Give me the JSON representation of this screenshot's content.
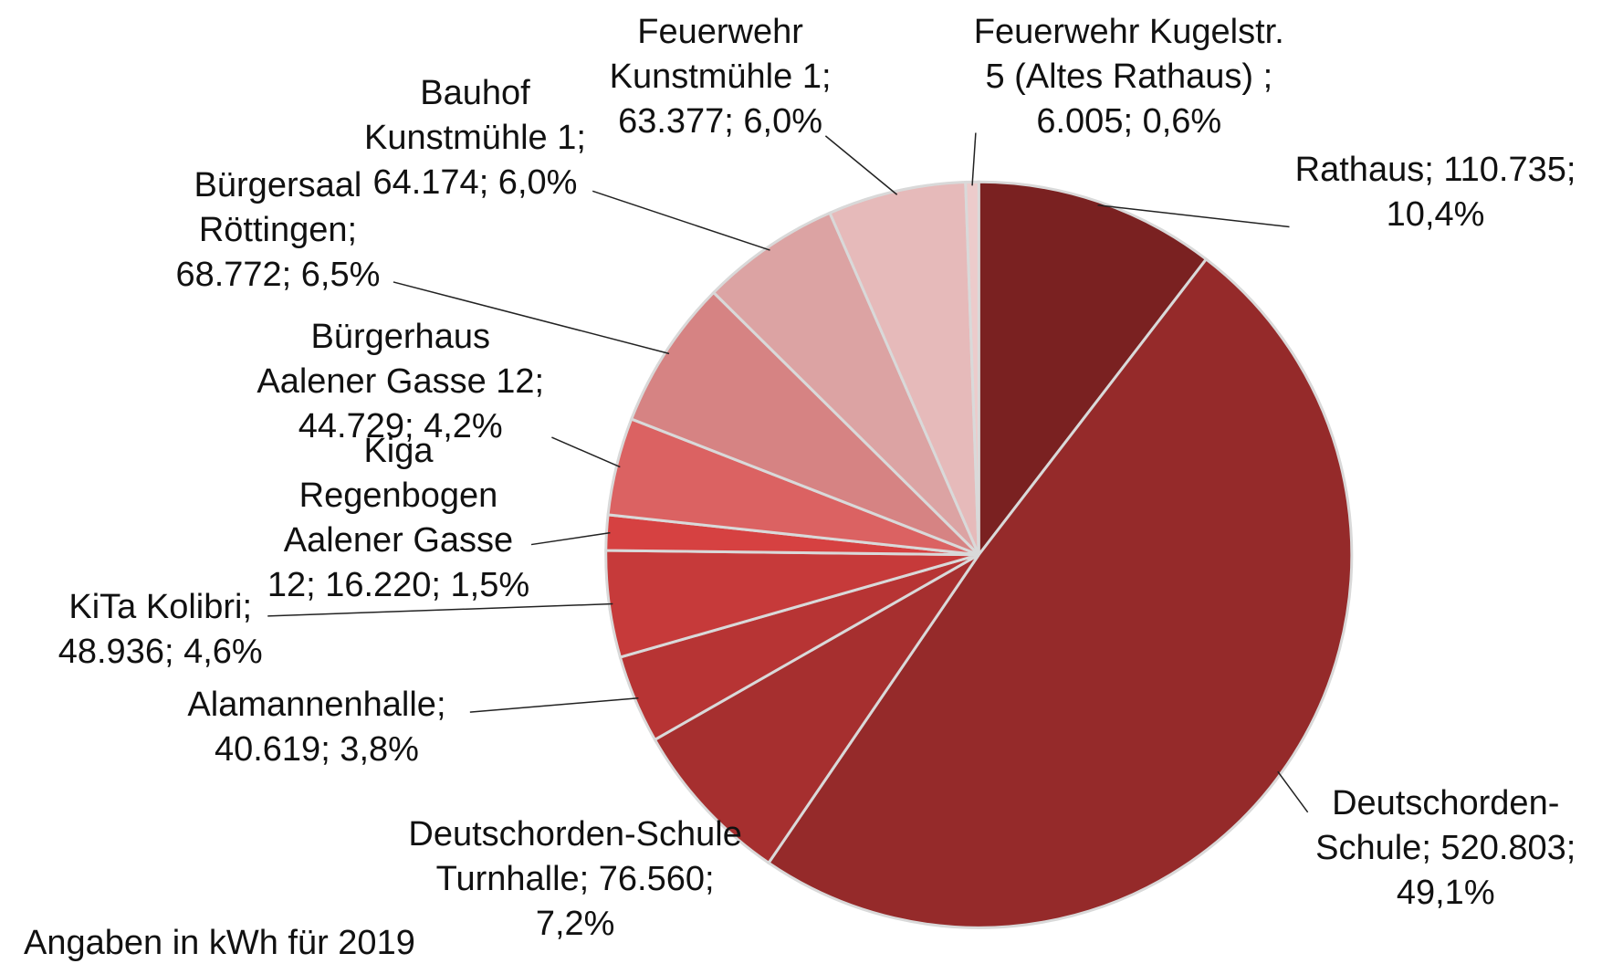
{
  "chart_data": {
    "type": "pie",
    "categories": [
      "Rathaus",
      "Deutschorden-Schule",
      "Deutschorden-Schule Turnhalle",
      "Alamannenhalle",
      "KiTa Kolibri",
      "Kiga Regenbogen Aalener Gasse 12",
      "Bürgerhaus Aalener Gasse 12",
      "Bürgersaal Röttingen",
      "Bauhof Kunstmühle 1",
      "Feuerwehr Kunstmühle 1",
      "Feuerwehr Kugelstr. 5 (Altes Rathaus)"
    ],
    "values": [
      110735,
      520803,
      76560,
      40619,
      48936,
      16220,
      44729,
      68772,
      64174,
      63377,
      6005
    ],
    "value_labels": [
      "Rathaus; 110.735; 10,4%",
      "Deutschorden-Schule; 520.803; 49,1%",
      "Deutschorden-Schule Turnhalle; 76.560; 7,2%",
      "Alamannenhalle; 40.619; 3,8%",
      "KiTa Kolibri; 48.936; 4,6%",
      "Kiga Regenbogen Aalener Gasse 12; 16.220; 1,5%",
      "Bürgerhaus Aalener Gasse 12; 44.729; 4,2%",
      "Bürgersaal Röttingen; 68.772; 6,5%",
      "Bauhof Kunstmühle 1; 64.174; 6,0%",
      "Feuerwehr Kunstmühle 1; 63.377; 6,0%",
      "Feuerwehr Kugelstr. 5 (Altes Rathaus) ; 6.005; 0,6%"
    ],
    "colors": [
      "#7a2121",
      "#952a2a",
      "#a62f2f",
      "#b73434",
      "#c63a3a",
      "#d64141",
      "#db6262",
      "#d68383",
      "#dca3a3",
      "#e6baba",
      "#eccbcb"
    ],
    "note": "Angaben in kWh für 2019"
  }
}
